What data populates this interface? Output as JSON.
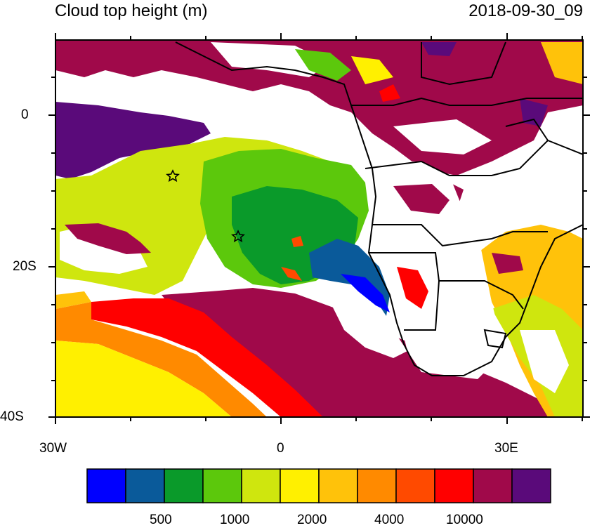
{
  "title": "Cloud top height (m)",
  "timestamp": "2018-09-30_09",
  "axes": {
    "y_labels": [
      "0",
      "20S",
      "40S"
    ],
    "x_labels": [
      "30W",
      "0",
      "30E"
    ]
  },
  "colorbar": {
    "colors": [
      "#0000ff",
      "#0a5a9a",
      "#0a9a2a",
      "#5cc80c",
      "#cfe60e",
      "#fff000",
      "#ffc20a",
      "#ff8a00",
      "#ff4a00",
      "#ff0000",
      "#a0094a",
      "#5a0a7a"
    ],
    "tick_labels": [
      "500",
      "1000",
      "2000",
      "4000",
      "10000"
    ]
  },
  "markers": [
    "star",
    "star"
  ]
}
